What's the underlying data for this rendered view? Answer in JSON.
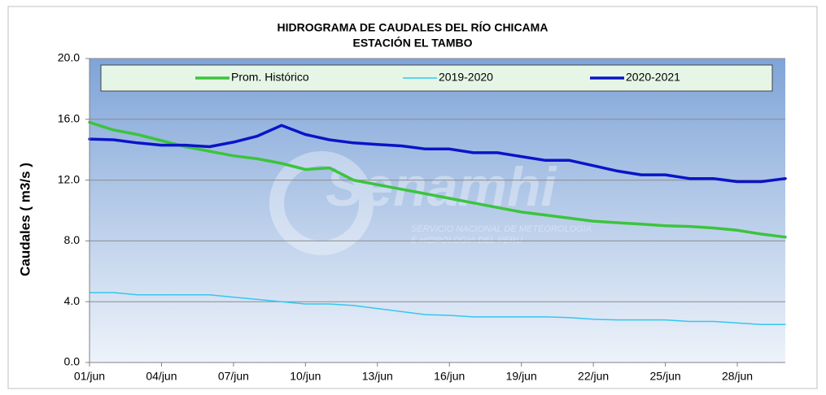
{
  "chart_data": {
    "type": "line",
    "title": [
      "HIDROGRAMA DE CAUDALES DEL RÍO CHICAMA",
      "ESTACIÓN EL TAMBO"
    ],
    "y_label": "Caudales ( m3/s )",
    "watermark": [
      "Senamhi",
      "SERVICIO NACIONAL DE METEOROLOGIA",
      "E HIDROLOGIA DEL PERU"
    ],
    "categories": [
      "01/jun",
      null,
      null,
      "04/jun",
      null,
      null,
      "07/jun",
      null,
      null,
      "10/jun",
      null,
      null,
      "13/jun",
      null,
      null,
      "16/jun",
      null,
      null,
      "19/jun",
      null,
      null,
      "22/jun",
      null,
      null,
      "25/jun",
      null,
      null,
      "28/jun",
      null,
      null
    ],
    "series": [
      {
        "name": "Prom. Histórico",
        "color": "#3cc43c",
        "width": 3.5,
        "values": [
          15.8,
          15.3,
          15.0,
          14.6,
          14.2,
          13.9,
          13.6,
          13.4,
          13.1,
          12.7,
          12.8,
          12.0,
          11.7,
          11.4,
          11.1,
          10.8,
          10.5,
          10.2,
          9.9,
          9.7,
          9.5,
          9.3,
          9.2,
          9.1,
          9.0,
          8.95,
          8.85,
          8.7,
          8.45,
          8.25
        ]
      },
      {
        "name": "2019-2020",
        "color": "#33c7f0",
        "width": 1.5,
        "values": [
          4.6,
          4.6,
          4.45,
          4.45,
          4.45,
          4.45,
          4.3,
          4.15,
          4.0,
          3.85,
          3.85,
          3.75,
          3.55,
          3.35,
          3.15,
          3.1,
          3.0,
          3.0,
          3.0,
          3.0,
          2.95,
          2.85,
          2.8,
          2.8,
          2.8,
          2.7,
          2.7,
          2.6,
          2.5,
          2.5
        ]
      },
      {
        "name": "2020-2021",
        "color": "#0a14c8",
        "width": 3.5,
        "values": [
          14.7,
          14.65,
          14.45,
          14.3,
          14.3,
          14.2,
          14.5,
          14.9,
          15.6,
          15.0,
          14.65,
          14.45,
          14.35,
          14.25,
          14.05,
          14.05,
          13.8,
          13.8,
          13.55,
          13.3,
          13.3,
          12.95,
          12.6,
          12.35,
          12.35,
          12.1,
          12.1,
          11.9,
          11.9,
          12.1
        ]
      }
    ],
    "ylim": [
      0,
      20
    ],
    "yticks": [
      {
        "value": 0,
        "label": "0.0"
      },
      {
        "value": 4,
        "label": "4.0"
      },
      {
        "value": 8,
        "label": "8.0"
      },
      {
        "value": 12,
        "label": "12.0"
      },
      {
        "value": 16,
        "label": "16.0"
      },
      {
        "value": 20,
        "label": "20.0"
      }
    ],
    "grid": true,
    "legend": "top"
  }
}
